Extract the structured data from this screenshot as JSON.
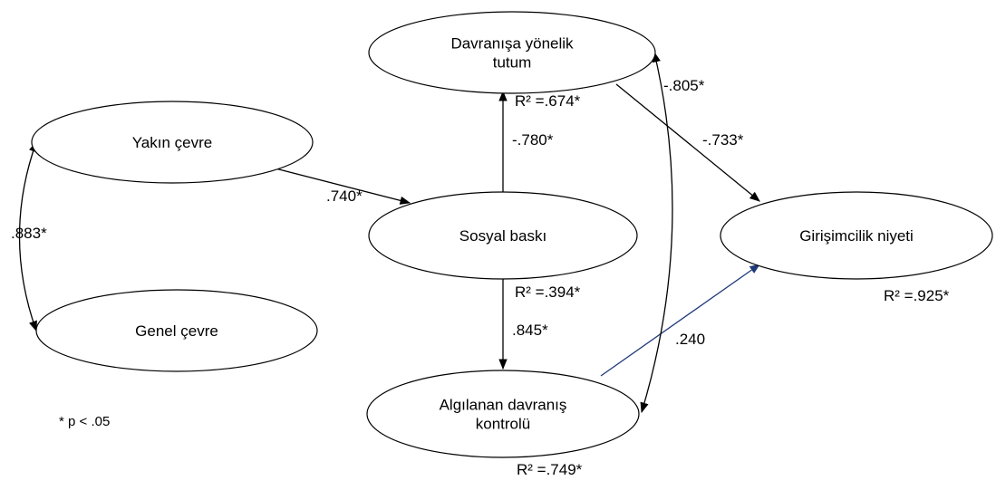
{
  "nodes": [
    {
      "label": [
        "Davranışa yönelik",
        "tutum"
      ]
    },
    {
      "label": [
        "Yakın çevre"
      ]
    },
    {
      "label": [
        "Genel çevre"
      ]
    },
    {
      "label": [
        "Sosyal baskı"
      ]
    },
    {
      "label": [
        "Girişimcilik niyeti"
      ]
    },
    {
      "label": [
        "Algılanan davranış",
        "kontrolü"
      ]
    }
  ],
  "edges": [
    {
      "label": ".740*"
    },
    {
      "label": "-.780*"
    },
    {
      "label": ".845*"
    },
    {
      "label": "-.733*"
    },
    {
      "label": ".240"
    },
    {
      "label": "-.805*"
    },
    {
      "label": ".883*"
    }
  ],
  "r_squared": [
    "R² =.674*",
    "R² =.394*",
    "R² =.925*",
    "R² =.749*"
  ],
  "note": "* p < .05"
}
